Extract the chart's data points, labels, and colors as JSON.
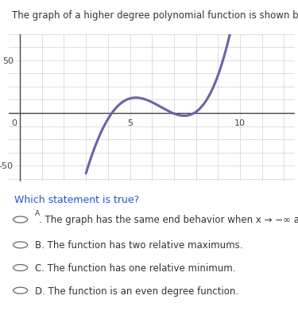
{
  "title": "The graph of a higher degree polynomial function is shown below.",
  "title_fontsize": 8.5,
  "title_color": "#333333",
  "curve_color": "#7060a8",
  "curve_linewidth": 2.2,
  "xlim": [
    -0.5,
    12.5
  ],
  "ylim": [
    -65,
    75
  ],
  "xticks": [
    0,
    5,
    10
  ],
  "yticks": [
    -50,
    50
  ],
  "grid_color": "#d0d0d0",
  "grid_major_color": "#bbbbbb",
  "axis_color": "#444444",
  "background_color": "#ffffff",
  "question_text": "Which statement is true?",
  "question_color": "#2255cc",
  "question_fontsize": 9,
  "choices": [
    {
      "label": "A",
      "superscript": true,
      "text": " The graph has the same end behavior when x → −∞ and when x → ∞."
    },
    {
      "label": "B",
      "superscript": false,
      "text": ". The function has two relative maximums."
    },
    {
      "label": "C",
      "superscript": false,
      "text": ". The function has one relative minimum."
    },
    {
      "label": "D",
      "superscript": false,
      "text": ". The function is an even degree function."
    }
  ],
  "choice_fontsize": 8.5,
  "choice_color": "#333333",
  "curve_x": [
    3.0,
    3.3,
    3.6,
    3.9,
    4.2,
    4.5,
    4.8,
    5.0,
    5.2,
    5.5,
    5.8,
    6.2,
    6.6,
    7.0,
    7.4,
    7.8,
    8.1,
    8.4,
    8.7,
    9.0,
    9.3,
    9.6
  ],
  "curve_y": [
    -55,
    -40,
    -25,
    -12,
    2,
    11,
    15,
    16,
    15,
    12,
    8,
    5,
    3,
    1,
    0.5,
    1,
    3,
    8,
    18,
    35,
    58,
    80
  ]
}
